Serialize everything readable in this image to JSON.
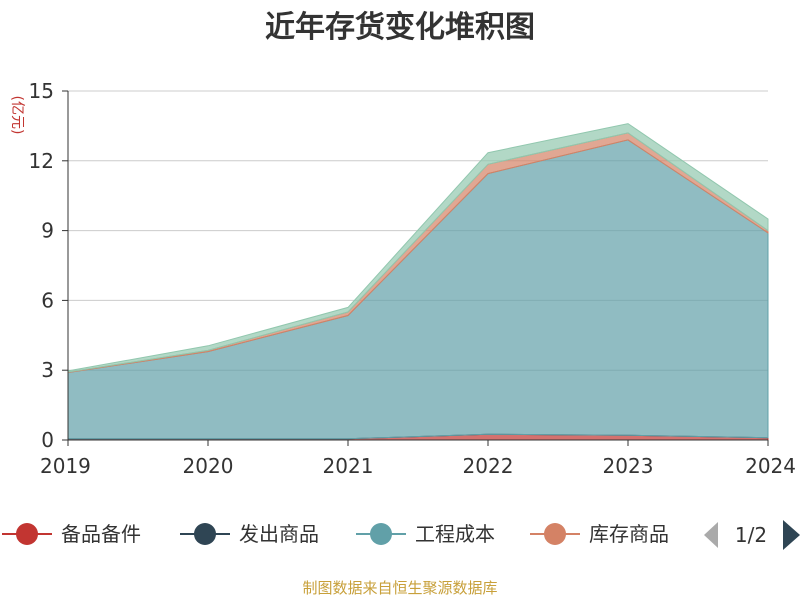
{
  "chart_data": {
    "type": "area",
    "stacked": true,
    "title": "近年存货变化堆积图",
    "ylabel": "(亿元)",
    "xlabel": "",
    "x": [
      "2019",
      "2020",
      "2021",
      "2022",
      "2023",
      "2024"
    ],
    "ylim": [
      0,
      15
    ],
    "yticks": [
      "0",
      "3",
      "6",
      "9",
      "12",
      "15"
    ],
    "grid": true,
    "series": [
      {
        "name": "备品备件",
        "color": "#c23531",
        "values": [
          0.05,
          0.05,
          0.05,
          0.25,
          0.2,
          0.1
        ]
      },
      {
        "name": "发出商品",
        "color": "#2f4554",
        "values": [
          0,
          0,
          0,
          0,
          0,
          0
        ]
      },
      {
        "name": "工程成本",
        "color": "#61a0a8",
        "values": [
          2.85,
          3.75,
          5.3,
          11.2,
          12.7,
          8.8
        ]
      },
      {
        "name": "库存商品",
        "color": "#d48265",
        "values": [
          0.02,
          0.05,
          0.15,
          0.4,
          0.3,
          0.1
        ]
      },
      {
        "name": "",
        "color": "#91c7ae",
        "values": [
          0.05,
          0.2,
          0.2,
          0.5,
          0.4,
          0.5
        ]
      }
    ],
    "legend": {
      "position": "bottom",
      "visible_items": [
        "备品备件",
        "发出商品",
        "工程成本",
        "库存商品"
      ],
      "page_label": "1/2"
    },
    "source": "制图数据来自恒生聚源数据库"
  }
}
